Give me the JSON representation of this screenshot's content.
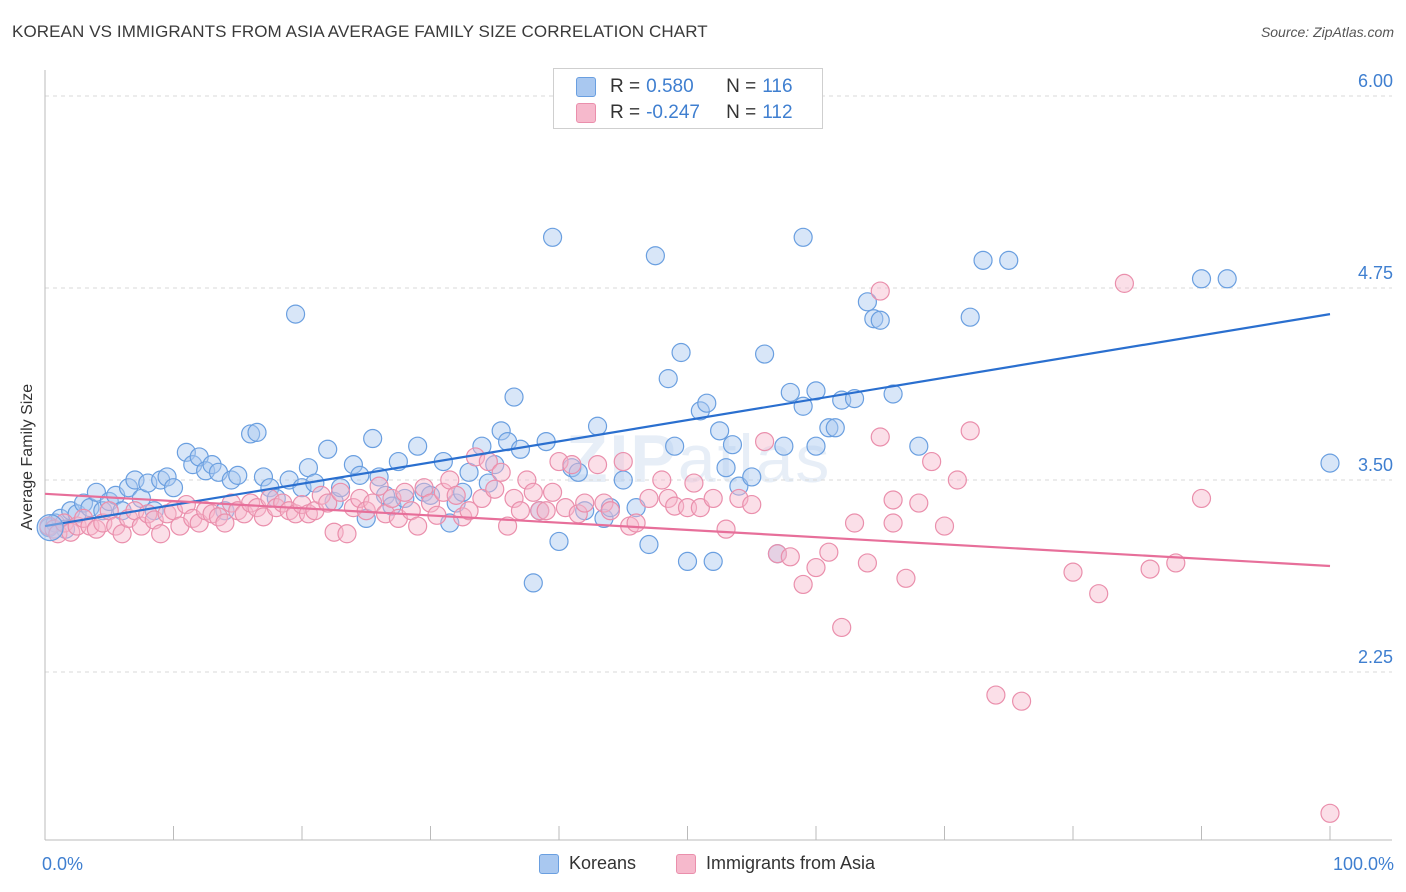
{
  "title": "KOREAN VS IMMIGRANTS FROM ASIA AVERAGE FAMILY SIZE CORRELATION CHART",
  "source": "Source: ZipAtlas.com",
  "watermark": {
    "bold": "ZIP",
    "light": "atlas"
  },
  "colors": {
    "blue_fill": "#a9c8f0",
    "blue_stroke": "#6a9fe0",
    "blue_line": "#2a6fcf",
    "pink_fill": "#f6b9cc",
    "pink_stroke": "#ea8fac",
    "pink_line": "#e76f9a",
    "tick_text": "#3f7fd0",
    "grid": "#d9d9d9"
  },
  "legend_top": [
    {
      "r_label": "R =",
      "r_value": "0.580",
      "n_label": "N =",
      "n_value": "116"
    },
    {
      "r_label": "R =",
      "r_value": "-0.247",
      "n_label": "N =",
      "n_value": "112"
    }
  ],
  "legend_bottom": [
    "Koreans",
    "Immigrants from Asia"
  ],
  "chart_data": {
    "type": "scatter",
    "title": "KOREAN VS IMMIGRANTS FROM ASIA AVERAGE FAMILY SIZE CORRELATION CHART",
    "xlabel": "",
    "ylabel": "Average Family Size",
    "xlim": [
      0,
      100
    ],
    "ylim": [
      1.0,
      6.25
    ],
    "x_tick_labels": [
      "0.0%",
      "100.0%"
    ],
    "y_ticks": [
      2.25,
      3.5,
      4.75,
      6.0
    ],
    "y_tick_labels": [
      "2.25",
      "3.50",
      "4.75",
      "6.00"
    ],
    "grid": "horizontal dashed",
    "legend_position": "top-center",
    "series": [
      {
        "name": "Koreans",
        "trend": {
          "x": [
            0,
            100
          ],
          "y": [
            3.2,
            4.58
          ]
        },
        "points": [
          [
            0.3,
            3.19
          ],
          [
            0.8,
            3.22
          ],
          [
            1.2,
            3.25
          ],
          [
            1.6,
            3.18
          ],
          [
            2.0,
            3.3
          ],
          [
            2.5,
            3.28
          ],
          [
            3.0,
            3.35
          ],
          [
            3.5,
            3.32
          ],
          [
            4.0,
            3.42
          ],
          [
            4.5,
            3.3
          ],
          [
            5.0,
            3.36
          ],
          [
            5.5,
            3.4
          ],
          [
            6.0,
            3.3
          ],
          [
            6.5,
            3.45
          ],
          [
            7.0,
            3.5
          ],
          [
            7.5,
            3.38
          ],
          [
            8.0,
            3.48
          ],
          [
            8.5,
            3.3
          ],
          [
            9.0,
            3.5
          ],
          [
            9.5,
            3.52
          ],
          [
            10.0,
            3.45
          ],
          [
            11.0,
            3.68
          ],
          [
            11.5,
            3.6
          ],
          [
            12.0,
            3.65
          ],
          [
            12.5,
            3.56
          ],
          [
            13.0,
            3.6
          ],
          [
            13.5,
            3.55
          ],
          [
            14.0,
            3.3
          ],
          [
            14.5,
            3.5
          ],
          [
            15.0,
            3.53
          ],
          [
            16.0,
            3.8
          ],
          [
            16.5,
            3.81
          ],
          [
            17.0,
            3.52
          ],
          [
            17.5,
            3.45
          ],
          [
            18.0,
            3.38
          ],
          [
            19.0,
            3.5
          ],
          [
            19.5,
            4.58
          ],
          [
            20.0,
            3.45
          ],
          [
            20.5,
            3.58
          ],
          [
            21.0,
            3.48
          ],
          [
            22.0,
            3.7
          ],
          [
            22.5,
            3.36
          ],
          [
            23.0,
            3.45
          ],
          [
            24.0,
            3.6
          ],
          [
            24.5,
            3.53
          ],
          [
            25.0,
            3.25
          ],
          [
            25.5,
            3.77
          ],
          [
            26.0,
            3.52
          ],
          [
            26.5,
            3.4
          ],
          [
            27.0,
            3.33
          ],
          [
            27.5,
            3.62
          ],
          [
            28.0,
            3.38
          ],
          [
            29.0,
            3.72
          ],
          [
            29.5,
            3.42
          ],
          [
            30.0,
            3.4
          ],
          [
            31.0,
            3.62
          ],
          [
            31.5,
            3.22
          ],
          [
            32.0,
            3.35
          ],
          [
            32.5,
            3.42
          ],
          [
            33.0,
            3.55
          ],
          [
            34.0,
            3.72
          ],
          [
            34.5,
            3.48
          ],
          [
            35.0,
            3.6
          ],
          [
            35.5,
            3.82
          ],
          [
            36.0,
            3.75
          ],
          [
            36.5,
            4.04
          ],
          [
            37.0,
            3.7
          ],
          [
            38.0,
            2.83
          ],
          [
            38.5,
            3.3
          ],
          [
            39.0,
            3.75
          ],
          [
            39.5,
            5.08
          ],
          [
            40.0,
            3.1
          ],
          [
            41.0,
            3.58
          ],
          [
            41.5,
            3.55
          ],
          [
            42.0,
            3.3
          ],
          [
            43.0,
            3.85
          ],
          [
            43.5,
            3.25
          ],
          [
            44.0,
            3.32
          ],
          [
            45.0,
            3.5
          ],
          [
            46.0,
            3.32
          ],
          [
            47.0,
            3.08
          ],
          [
            47.5,
            4.96
          ],
          [
            48.5,
            4.16
          ],
          [
            49.0,
            3.72
          ],
          [
            49.5,
            4.33
          ],
          [
            50.0,
            2.97
          ],
          [
            51.0,
            3.95
          ],
          [
            51.5,
            4.0
          ],
          [
            52.0,
            2.97
          ],
          [
            52.5,
            3.82
          ],
          [
            53.0,
            3.58
          ],
          [
            53.5,
            3.73
          ],
          [
            54.0,
            3.46
          ],
          [
            55.0,
            3.52
          ],
          [
            56.0,
            4.32
          ],
          [
            57.0,
            3.02
          ],
          [
            57.5,
            3.72
          ],
          [
            58.0,
            4.07
          ],
          [
            59.0,
            3.98
          ],
          [
            60.0,
            4.08
          ],
          [
            61.0,
            3.84
          ],
          [
            61.5,
            3.84
          ],
          [
            62.0,
            4.02
          ],
          [
            63.0,
            4.03
          ],
          [
            64.0,
            4.66
          ],
          [
            64.5,
            4.55
          ],
          [
            65.0,
            4.54
          ],
          [
            66.0,
            4.06
          ],
          [
            68.0,
            3.72
          ],
          [
            72.0,
            4.56
          ],
          [
            73.0,
            4.93
          ],
          [
            75.0,
            4.93
          ],
          [
            90.0,
            4.81
          ],
          [
            92.0,
            4.81
          ],
          [
            100.0,
            3.61
          ],
          [
            59.0,
            5.08
          ],
          [
            60.0,
            3.72
          ]
        ]
      },
      {
        "name": "Immigrants from Asia",
        "trend": {
          "x": [
            0,
            100
          ],
          "y": [
            3.41,
            2.94
          ]
        },
        "points": [
          [
            0.3,
            3.2
          ],
          [
            0.7,
            3.18
          ],
          [
            1.0,
            3.15
          ],
          [
            1.5,
            3.22
          ],
          [
            2.0,
            3.16
          ],
          [
            2.5,
            3.2
          ],
          [
            3.0,
            3.25
          ],
          [
            3.5,
            3.2
          ],
          [
            4.0,
            3.18
          ],
          [
            4.5,
            3.22
          ],
          [
            5.0,
            3.3
          ],
          [
            5.5,
            3.2
          ],
          [
            6.0,
            3.15
          ],
          [
            6.5,
            3.25
          ],
          [
            7.0,
            3.3
          ],
          [
            7.5,
            3.2
          ],
          [
            8.0,
            3.28
          ],
          [
            8.5,
            3.24
          ],
          [
            9.0,
            3.15
          ],
          [
            9.5,
            3.28
          ],
          [
            10.0,
            3.3
          ],
          [
            10.5,
            3.2
          ],
          [
            11.0,
            3.34
          ],
          [
            11.5,
            3.25
          ],
          [
            12.0,
            3.22
          ],
          [
            12.5,
            3.3
          ],
          [
            13.0,
            3.28
          ],
          [
            13.5,
            3.26
          ],
          [
            14.0,
            3.22
          ],
          [
            14.5,
            3.35
          ],
          [
            15.0,
            3.3
          ],
          [
            15.5,
            3.28
          ],
          [
            16.0,
            3.35
          ],
          [
            16.5,
            3.32
          ],
          [
            17.0,
            3.26
          ],
          [
            17.5,
            3.38
          ],
          [
            18.0,
            3.32
          ],
          [
            18.5,
            3.35
          ],
          [
            19.0,
            3.3
          ],
          [
            19.5,
            3.28
          ],
          [
            20.0,
            3.34
          ],
          [
            20.5,
            3.28
          ],
          [
            21.0,
            3.3
          ],
          [
            21.5,
            3.4
          ],
          [
            22.0,
            3.35
          ],
          [
            22.5,
            3.16
          ],
          [
            23.0,
            3.42
          ],
          [
            23.5,
            3.15
          ],
          [
            24.0,
            3.32
          ],
          [
            24.5,
            3.38
          ],
          [
            25.0,
            3.3
          ],
          [
            25.5,
            3.35
          ],
          [
            26.0,
            3.46
          ],
          [
            26.5,
            3.28
          ],
          [
            27.0,
            3.38
          ],
          [
            27.5,
            3.25
          ],
          [
            28.0,
            3.42
          ],
          [
            28.5,
            3.3
          ],
          [
            29.0,
            3.2
          ],
          [
            29.5,
            3.45
          ],
          [
            30.0,
            3.35
          ],
          [
            30.5,
            3.27
          ],
          [
            31.0,
            3.42
          ],
          [
            31.5,
            3.5
          ],
          [
            32.0,
            3.4
          ],
          [
            32.5,
            3.26
          ],
          [
            33.0,
            3.3
          ],
          [
            33.5,
            3.65
          ],
          [
            34.0,
            3.38
          ],
          [
            34.5,
            3.62
          ],
          [
            35.0,
            3.44
          ],
          [
            35.5,
            3.55
          ],
          [
            36.0,
            3.2
          ],
          [
            36.5,
            3.38
          ],
          [
            37.0,
            3.3
          ],
          [
            37.5,
            3.5
          ],
          [
            38.0,
            3.42
          ],
          [
            38.5,
            3.3
          ],
          [
            39.0,
            3.3
          ],
          [
            39.5,
            3.42
          ],
          [
            40.0,
            3.62
          ],
          [
            40.5,
            3.32
          ],
          [
            41.0,
            3.6
          ],
          [
            41.5,
            3.28
          ],
          [
            42.0,
            3.35
          ],
          [
            43.0,
            3.6
          ],
          [
            43.5,
            3.35
          ],
          [
            44.0,
            3.3
          ],
          [
            45.0,
            3.62
          ],
          [
            45.5,
            3.2
          ],
          [
            46.0,
            3.22
          ],
          [
            47.0,
            3.38
          ],
          [
            48.0,
            3.5
          ],
          [
            48.5,
            3.38
          ],
          [
            49.0,
            3.33
          ],
          [
            50.0,
            3.32
          ],
          [
            50.5,
            3.48
          ],
          [
            51.0,
            3.32
          ],
          [
            52.0,
            3.38
          ],
          [
            53.0,
            3.18
          ],
          [
            54.0,
            3.38
          ],
          [
            55.0,
            3.34
          ],
          [
            56.0,
            3.75
          ],
          [
            57.0,
            3.02
          ],
          [
            58.0,
            3.0
          ],
          [
            59.0,
            2.82
          ],
          [
            60.0,
            2.93
          ],
          [
            61.0,
            3.03
          ],
          [
            62.0,
            2.54
          ],
          [
            63.0,
            3.22
          ],
          [
            64.0,
            2.96
          ],
          [
            65.0,
            3.78
          ],
          [
            66.0,
            3.37
          ],
          [
            67.0,
            2.86
          ],
          [
            68.0,
            3.35
          ],
          [
            69.0,
            3.62
          ],
          [
            70.0,
            3.2
          ],
          [
            71.0,
            3.5
          ],
          [
            72.0,
            3.82
          ],
          [
            74.0,
            2.1
          ],
          [
            76.0,
            2.06
          ],
          [
            80.0,
            2.9
          ],
          [
            82.0,
            2.76
          ],
          [
            84.0,
            4.78
          ],
          [
            86.0,
            2.92
          ],
          [
            88.0,
            2.96
          ],
          [
            90.0,
            3.38
          ],
          [
            100.0,
            1.33
          ],
          [
            65.0,
            4.73
          ],
          [
            66.0,
            3.22
          ]
        ]
      }
    ]
  }
}
